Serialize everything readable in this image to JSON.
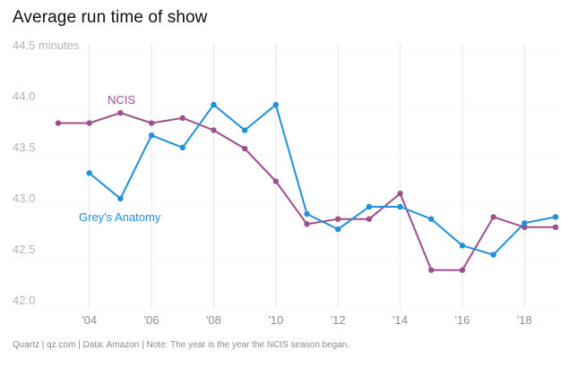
{
  "title": "Average run time of show",
  "footer": "Quartz | qz.com | Data: Amazon | Note: The year is the year the NCIS season began.",
  "chart_data": {
    "type": "line",
    "title": "Average run time of show",
    "ylabel": "",
    "xlabel": "",
    "ylim": [
      42.0,
      44.5
    ],
    "xlim": [
      2003,
      2019
    ],
    "grid": true,
    "y_ticks": [
      42.0,
      42.5,
      43.0,
      43.5,
      44.0,
      44.5
    ],
    "y_tick_labels": [
      "42.0",
      "42.5",
      "43.0",
      "43.5",
      "44.0",
      "44.5 minutes"
    ],
    "x_ticks": [
      2004,
      2006,
      2008,
      2010,
      2012,
      2014,
      2016,
      2018
    ],
    "x_tick_labels": [
      "'04",
      "'06",
      "'08",
      "'10",
      "'12",
      "'14",
      "'16",
      "'18"
    ],
    "series": [
      {
        "name": "NCIS",
        "color": "#9e4f8c",
        "x": [
          2003,
          2004,
          2005,
          2006,
          2007,
          2008,
          2009,
          2010,
          2011,
          2012,
          2013,
          2014,
          2015,
          2016,
          2017,
          2018,
          2019
        ],
        "values": [
          43.82,
          43.82,
          43.92,
          43.82,
          43.87,
          43.75,
          43.57,
          43.25,
          42.83,
          42.88,
          42.88,
          43.13,
          42.38,
          42.38,
          42.9,
          42.8,
          42.8
        ]
      },
      {
        "name": "Grey's Anatomy",
        "color": "#2090d8",
        "x": [
          2004,
          2005,
          2006,
          2007,
          2008,
          2009,
          2010,
          2011,
          2012,
          2013,
          2014,
          2015,
          2016,
          2017,
          2018,
          2019
        ],
        "values": [
          43.33,
          43.08,
          43.7,
          43.58,
          44.0,
          43.75,
          44.0,
          42.93,
          42.78,
          43.0,
          43.0,
          42.88,
          42.62,
          42.53,
          42.84,
          42.9
        ]
      }
    ]
  }
}
